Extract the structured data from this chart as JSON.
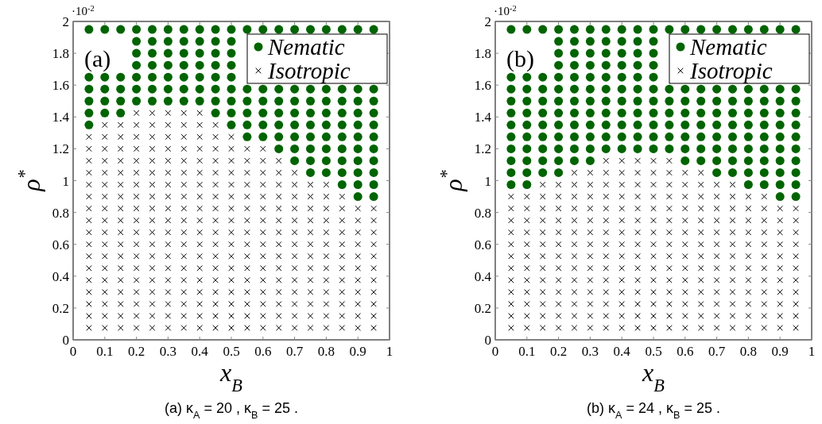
{
  "chart_data": [
    {
      "type": "scatter",
      "xlabel": "x$_{B}$",
      "ylabel": "ρ$^{*}$",
      "annotations": [
        "·10$^{-2}$",
        "(a)",
        "(a) κ$_{A}$ = 20 ,    κ$_{B}$ = 25 ."
      ],
      "xlim": [
        0,
        1
      ],
      "ylim": [
        0,
        2
      ],
      "xticks": [
        0,
        0.1,
        0.2,
        0.3,
        0.4,
        0.5,
        0.6,
        0.7,
        0.8,
        0.9,
        1
      ],
      "yticks": [
        0,
        0.2,
        0.4,
        0.6,
        0.8,
        1,
        1.2,
        1.4,
        1.6,
        1.8,
        2
      ],
      "legend": "top right",
      "grid": false,
      "series": [
        {
          "name": "Nematic",
          "color": "#006400",
          "marker": "circle",
          "x": [
            0.05,
            0.05,
            0.05,
            0.05,
            0.05,
            0.05,
            0.1,
            0.1,
            0.1,
            0.1,
            0.1,
            0.15,
            0.15,
            0.15,
            0.15,
            0.15,
            0.2,
            0.2,
            0.2,
            0.2,
            0.2,
            0.2,
            0.2,
            0.25,
            0.25,
            0.25,
            0.25,
            0.25,
            0.25,
            0.25,
            0.3,
            0.3,
            0.3,
            0.3,
            0.3,
            0.3,
            0.3,
            0.35,
            0.35,
            0.35,
            0.35,
            0.35,
            0.35,
            0.35,
            0.4,
            0.4,
            0.4,
            0.4,
            0.4,
            0.4,
            0.4,
            0.45,
            0.45,
            0.45,
            0.45,
            0.45,
            0.45,
            0.45,
            0.45,
            0.5,
            0.5,
            0.5,
            0.5,
            0.5,
            0.5,
            0.5,
            0.5,
            0.5,
            0.55,
            0.55,
            0.55,
            0.55,
            0.55,
            0.55,
            0.6,
            0.6,
            0.6,
            0.6,
            0.6,
            0.6,
            0.65,
            0.65,
            0.65,
            0.65,
            0.65,
            0.65,
            0.65,
            0.7,
            0.7,
            0.7,
            0.7,
            0.7,
            0.7,
            0.7,
            0.7,
            0.75,
            0.75,
            0.75,
            0.75,
            0.75,
            0.75,
            0.75,
            0.75,
            0.75,
            0.8,
            0.8,
            0.8,
            0.8,
            0.8,
            0.8,
            0.8,
            0.8,
            0.8,
            0.85,
            0.85,
            0.85,
            0.85,
            0.85,
            0.85,
            0.85,
            0.85,
            0.85,
            0.85,
            0.9,
            0.9,
            0.9,
            0.9,
            0.9,
            0.9,
            0.9,
            0.9,
            0.9,
            0.9,
            0.9,
            0.95,
            0.95,
            0.95,
            0.95,
            0.95,
            0.95,
            0.95,
            0.95,
            0.95,
            0.95,
            0.95
          ],
          "values": [
            1.35,
            1.425,
            1.5,
            1.575,
            1.65,
            1.95,
            1.425,
            1.5,
            1.575,
            1.65,
            1.95,
            1.425,
            1.5,
            1.575,
            1.65,
            1.95,
            1.5,
            1.575,
            1.65,
            1.725,
            1.8,
            1.875,
            1.95,
            1.5,
            1.575,
            1.65,
            1.725,
            1.8,
            1.875,
            1.95,
            1.5,
            1.575,
            1.65,
            1.725,
            1.8,
            1.875,
            1.95,
            1.5,
            1.575,
            1.65,
            1.725,
            1.8,
            1.875,
            1.95,
            1.5,
            1.575,
            1.65,
            1.725,
            1.8,
            1.875,
            1.95,
            1.425,
            1.5,
            1.575,
            1.65,
            1.725,
            1.8,
            1.875,
            1.95,
            1.35,
            1.425,
            1.5,
            1.575,
            1.65,
            1.725,
            1.8,
            1.875,
            1.95,
            1.275,
            1.35,
            1.425,
            1.5,
            1.575,
            1.95,
            1.275,
            1.35,
            1.425,
            1.5,
            1.575,
            1.95,
            1.2,
            1.275,
            1.35,
            1.425,
            1.5,
            1.575,
            1.95,
            1.125,
            1.2,
            1.275,
            1.35,
            1.425,
            1.5,
            1.575,
            1.95,
            1.05,
            1.125,
            1.2,
            1.275,
            1.35,
            1.425,
            1.5,
            1.575,
            1.95,
            1.05,
            1.125,
            1.2,
            1.275,
            1.35,
            1.425,
            1.5,
            1.575,
            1.95,
            0.975,
            1.05,
            1.125,
            1.2,
            1.275,
            1.35,
            1.425,
            1.5,
            1.575,
            1.95,
            0.9,
            0.975,
            1.05,
            1.125,
            1.2,
            1.275,
            1.35,
            1.425,
            1.5,
            1.575,
            1.95,
            0.9,
            0.975,
            1.05,
            1.125,
            1.2,
            1.275,
            1.35,
            1.425,
            1.5,
            1.575,
            1.95
          ]
        },
        {
          "name": "Isotropic",
          "color": "#000000",
          "marker": "cross",
          "x": [
            0.05,
            0.05,
            0.05,
            0.05,
            0.05,
            0.05,
            0.05,
            0.05,
            0.05,
            0.05,
            0.05,
            0.05,
            0.05,
            0.05,
            0.05,
            0.05,
            0.05,
            0.1,
            0.1,
            0.1,
            0.1,
            0.1,
            0.1,
            0.1,
            0.1,
            0.1,
            0.1,
            0.1,
            0.1,
            0.1,
            0.1,
            0.1,
            0.1,
            0.1,
            0.1,
            0.15,
            0.15,
            0.15,
            0.15,
            0.15,
            0.15,
            0.15,
            0.15,
            0.15,
            0.15,
            0.15,
            0.15,
            0.15,
            0.15,
            0.15,
            0.15,
            0.15,
            0.15,
            0.2,
            0.2,
            0.2,
            0.2,
            0.2,
            0.2,
            0.2,
            0.2,
            0.2,
            0.2,
            0.2,
            0.2,
            0.2,
            0.2,
            0.2,
            0.2,
            0.2,
            0.2,
            0.2,
            0.25,
            0.25,
            0.25,
            0.25,
            0.25,
            0.25,
            0.25,
            0.25,
            0.25,
            0.25,
            0.25,
            0.25,
            0.25,
            0.25,
            0.25,
            0.25,
            0.25,
            0.25,
            0.25,
            0.3,
            0.3,
            0.3,
            0.3,
            0.3,
            0.3,
            0.3,
            0.3,
            0.3,
            0.3,
            0.3,
            0.3,
            0.3,
            0.3,
            0.3,
            0.3,
            0.3,
            0.3,
            0.3,
            0.35,
            0.35,
            0.35,
            0.35,
            0.35,
            0.35,
            0.35,
            0.35,
            0.35,
            0.35,
            0.35,
            0.35,
            0.35,
            0.35,
            0.35,
            0.35,
            0.35,
            0.35,
            0.35,
            0.4,
            0.4,
            0.4,
            0.4,
            0.4,
            0.4,
            0.4,
            0.4,
            0.4,
            0.4,
            0.4,
            0.4,
            0.4,
            0.4,
            0.4,
            0.4,
            0.4,
            0.4,
            0.4,
            0.45,
            0.45,
            0.45,
            0.45,
            0.45,
            0.45,
            0.45,
            0.45,
            0.45,
            0.45,
            0.45,
            0.45,
            0.45,
            0.45,
            0.45,
            0.45,
            0.45,
            0.45,
            0.5,
            0.5,
            0.5,
            0.5,
            0.5,
            0.5,
            0.5,
            0.5,
            0.5,
            0.5,
            0.5,
            0.5,
            0.5,
            0.5,
            0.5,
            0.5,
            0.5,
            0.55,
            0.55,
            0.55,
            0.55,
            0.55,
            0.55,
            0.55,
            0.55,
            0.55,
            0.55,
            0.55,
            0.55,
            0.55,
            0.55,
            0.55,
            0.55,
            0.6,
            0.6,
            0.6,
            0.6,
            0.6,
            0.6,
            0.6,
            0.6,
            0.6,
            0.6,
            0.6,
            0.6,
            0.6,
            0.6,
            0.6,
            0.6,
            0.65,
            0.65,
            0.65,
            0.65,
            0.65,
            0.65,
            0.65,
            0.65,
            0.65,
            0.65,
            0.65,
            0.65,
            0.65,
            0.65,
            0.65,
            0.7,
            0.7,
            0.7,
            0.7,
            0.7,
            0.7,
            0.7,
            0.7,
            0.7,
            0.7,
            0.7,
            0.7,
            0.7,
            0.7,
            0.75,
            0.75,
            0.75,
            0.75,
            0.75,
            0.75,
            0.75,
            0.75,
            0.75,
            0.75,
            0.75,
            0.75,
            0.75,
            0.8,
            0.8,
            0.8,
            0.8,
            0.8,
            0.8,
            0.8,
            0.8,
            0.8,
            0.8,
            0.8,
            0.8,
            0.8,
            0.85,
            0.85,
            0.85,
            0.85,
            0.85,
            0.85,
            0.85,
            0.85,
            0.85,
            0.85,
            0.85,
            0.85,
            0.9,
            0.9,
            0.9,
            0.9,
            0.9,
            0.9,
            0.9,
            0.9,
            0.9,
            0.9,
            0.9,
            0.95,
            0.95,
            0.95,
            0.95,
            0.95,
            0.95,
            0.95,
            0.95,
            0.95,
            0.95,
            0.95
          ],
          "values": [
            0.075,
            0.15,
            0.225,
            0.3,
            0.375,
            0.45,
            0.525,
            0.6,
            0.675,
            0.75,
            0.825,
            0.9,
            0.975,
            1.05,
            1.125,
            1.2,
            1.275,
            0.075,
            0.15,
            0.225,
            0.3,
            0.375,
            0.45,
            0.525,
            0.6,
            0.675,
            0.75,
            0.825,
            0.9,
            0.975,
            1.05,
            1.125,
            1.2,
            1.275,
            1.35,
            0.075,
            0.15,
            0.225,
            0.3,
            0.375,
            0.45,
            0.525,
            0.6,
            0.675,
            0.75,
            0.825,
            0.9,
            0.975,
            1.05,
            1.125,
            1.2,
            1.275,
            1.35,
            0.075,
            0.15,
            0.225,
            0.3,
            0.375,
            0.45,
            0.525,
            0.6,
            0.675,
            0.75,
            0.825,
            0.9,
            0.975,
            1.05,
            1.125,
            1.2,
            1.275,
            1.35,
            1.425,
            0.075,
            0.15,
            0.225,
            0.3,
            0.375,
            0.45,
            0.525,
            0.6,
            0.675,
            0.75,
            0.825,
            0.9,
            0.975,
            1.05,
            1.125,
            1.2,
            1.275,
            1.35,
            1.425,
            0.075,
            0.15,
            0.225,
            0.3,
            0.375,
            0.45,
            0.525,
            0.6,
            0.675,
            0.75,
            0.825,
            0.9,
            0.975,
            1.05,
            1.125,
            1.2,
            1.275,
            1.35,
            1.425,
            0.075,
            0.15,
            0.225,
            0.3,
            0.375,
            0.45,
            0.525,
            0.6,
            0.675,
            0.75,
            0.825,
            0.9,
            0.975,
            1.05,
            1.125,
            1.2,
            1.275,
            1.35,
            1.425,
            0.075,
            0.15,
            0.225,
            0.3,
            0.375,
            0.45,
            0.525,
            0.6,
            0.675,
            0.75,
            0.825,
            0.9,
            0.975,
            1.05,
            1.125,
            1.2,
            1.275,
            1.35,
            1.425,
            0.075,
            0.15,
            0.225,
            0.3,
            0.375,
            0.45,
            0.525,
            0.6,
            0.675,
            0.75,
            0.825,
            0.9,
            0.975,
            1.05,
            1.125,
            1.2,
            1.275,
            1.35,
            0.075,
            0.15,
            0.225,
            0.3,
            0.375,
            0.45,
            0.525,
            0.6,
            0.675,
            0.75,
            0.825,
            0.9,
            0.975,
            1.05,
            1.125,
            1.2,
            1.275,
            0.075,
            0.15,
            0.225,
            0.3,
            0.375,
            0.45,
            0.525,
            0.6,
            0.675,
            0.75,
            0.825,
            0.9,
            0.975,
            1.05,
            1.125,
            1.2,
            0.075,
            0.15,
            0.225,
            0.3,
            0.375,
            0.45,
            0.525,
            0.6,
            0.675,
            0.75,
            0.825,
            0.9,
            0.975,
            1.05,
            1.125,
            1.2,
            0.075,
            0.15,
            0.225,
            0.3,
            0.375,
            0.45,
            0.525,
            0.6,
            0.675,
            0.75,
            0.825,
            0.9,
            0.975,
            1.05,
            1.125,
            0.075,
            0.15,
            0.225,
            0.3,
            0.375,
            0.45,
            0.525,
            0.6,
            0.675,
            0.75,
            0.825,
            0.9,
            0.975,
            1.05,
            0.075,
            0.15,
            0.225,
            0.3,
            0.375,
            0.45,
            0.525,
            0.6,
            0.675,
            0.75,
            0.825,
            0.9,
            0.975,
            0.075,
            0.15,
            0.225,
            0.3,
            0.375,
            0.45,
            0.525,
            0.6,
            0.675,
            0.75,
            0.825,
            0.9,
            0.975,
            0.075,
            0.15,
            0.225,
            0.3,
            0.375,
            0.45,
            0.525,
            0.6,
            0.675,
            0.75,
            0.825,
            0.9,
            0.075,
            0.15,
            0.225,
            0.3,
            0.375,
            0.45,
            0.525,
            0.6,
            0.675,
            0.75,
            0.825,
            0.075,
            0.15,
            0.225,
            0.3,
            0.375,
            0.45,
            0.525,
            0.6,
            0.675,
            0.75,
            0.825
          ]
        }
      ]
    },
    {
      "type": "scatter",
      "xlabel": "x$_{B}$",
      "ylabel": "ρ$^{*}$",
      "annotations": [
        "·10$^{-2}$",
        "(b)",
        "(b) κ$_{A}$ = 24 ,    κ$_{B}$ = 25 ."
      ],
      "xlim": [
        0,
        1
      ],
      "ylim": [
        0,
        2
      ],
      "xticks": [
        0,
        0.1,
        0.2,
        0.3,
        0.4,
        0.5,
        0.6,
        0.7,
        0.8,
        0.9,
        1
      ],
      "yticks": [
        0,
        0.2,
        0.4,
        0.6,
        0.8,
        1,
        1.2,
        1.4,
        1.6,
        1.8,
        2
      ],
      "legend": "top right",
      "grid": false,
      "series": [
        {
          "name": "Nematic",
          "color": "#006400",
          "marker": "circle",
          "x": [
            0.05,
            0.05,
            0.05,
            0.05,
            0.05,
            0.05,
            0.05,
            0.05,
            0.05,
            0.05,
            0.05,
            0.1,
            0.1,
            0.1,
            0.1,
            0.1,
            0.1,
            0.1,
            0.1,
            0.1,
            0.1,
            0.1,
            0.15,
            0.15,
            0.15,
            0.15,
            0.15,
            0.15,
            0.15,
            0.15,
            0.15,
            0.15,
            0.2,
            0.2,
            0.2,
            0.2,
            0.2,
            0.2,
            0.2,
            0.2,
            0.2,
            0.2,
            0.2,
            0.2,
            0.2,
            0.25,
            0.25,
            0.25,
            0.25,
            0.25,
            0.25,
            0.25,
            0.25,
            0.25,
            0.25,
            0.25,
            0.25,
            0.3,
            0.3,
            0.3,
            0.3,
            0.3,
            0.3,
            0.3,
            0.3,
            0.3,
            0.3,
            0.3,
            0.3,
            0.35,
            0.35,
            0.35,
            0.35,
            0.35,
            0.35,
            0.35,
            0.35,
            0.35,
            0.35,
            0.35,
            0.4,
            0.4,
            0.4,
            0.4,
            0.4,
            0.4,
            0.4,
            0.4,
            0.4,
            0.4,
            0.4,
            0.45,
            0.45,
            0.45,
            0.45,
            0.45,
            0.45,
            0.45,
            0.45,
            0.45,
            0.45,
            0.45,
            0.5,
            0.5,
            0.5,
            0.5,
            0.5,
            0.5,
            0.5,
            0.5,
            0.5,
            0.5,
            0.5,
            0.55,
            0.55,
            0.55,
            0.55,
            0.55,
            0.55,
            0.55,
            0.6,
            0.6,
            0.6,
            0.6,
            0.6,
            0.6,
            0.6,
            0.6,
            0.65,
            0.65,
            0.65,
            0.65,
            0.65,
            0.65,
            0.65,
            0.65,
            0.7,
            0.7,
            0.7,
            0.7,
            0.7,
            0.7,
            0.7,
            0.7,
            0.7,
            0.75,
            0.75,
            0.75,
            0.75,
            0.75,
            0.75,
            0.75,
            0.75,
            0.75,
            0.8,
            0.8,
            0.8,
            0.8,
            0.8,
            0.8,
            0.8,
            0.8,
            0.8,
            0.8,
            0.85,
            0.85,
            0.85,
            0.85,
            0.85,
            0.85,
            0.85,
            0.85,
            0.85,
            0.85,
            0.9,
            0.9,
            0.9,
            0.9,
            0.9,
            0.9,
            0.9,
            0.9,
            0.9,
            0.9,
            0.9,
            0.95,
            0.95,
            0.95,
            0.95,
            0.95,
            0.95,
            0.95,
            0.95,
            0.95,
            0.95,
            0.95
          ],
          "values": [
            0.975,
            1.05,
            1.125,
            1.2,
            1.275,
            1.35,
            1.425,
            1.5,
            1.575,
            1.65,
            1.95,
            0.975,
            1.05,
            1.125,
            1.2,
            1.275,
            1.35,
            1.425,
            1.5,
            1.575,
            1.65,
            1.95,
            1.05,
            1.125,
            1.2,
            1.275,
            1.35,
            1.425,
            1.5,
            1.575,
            1.65,
            1.95,
            1.05,
            1.125,
            1.2,
            1.275,
            1.35,
            1.425,
            1.5,
            1.575,
            1.65,
            1.725,
            1.8,
            1.875,
            1.95,
            1.125,
            1.2,
            1.275,
            1.35,
            1.425,
            1.5,
            1.575,
            1.65,
            1.725,
            1.8,
            1.875,
            1.95,
            1.125,
            1.2,
            1.275,
            1.35,
            1.425,
            1.5,
            1.575,
            1.65,
            1.725,
            1.8,
            1.875,
            1.95,
            1.2,
            1.275,
            1.35,
            1.425,
            1.5,
            1.575,
            1.65,
            1.725,
            1.8,
            1.875,
            1.95,
            1.2,
            1.275,
            1.35,
            1.425,
            1.5,
            1.575,
            1.65,
            1.725,
            1.8,
            1.875,
            1.95,
            1.2,
            1.275,
            1.35,
            1.425,
            1.5,
            1.575,
            1.65,
            1.725,
            1.8,
            1.875,
            1.95,
            1.2,
            1.275,
            1.35,
            1.425,
            1.5,
            1.575,
            1.65,
            1.725,
            1.8,
            1.875,
            1.95,
            1.2,
            1.275,
            1.35,
            1.425,
            1.5,
            1.575,
            1.95,
            1.125,
            1.2,
            1.275,
            1.35,
            1.425,
            1.5,
            1.575,
            1.95,
            1.125,
            1.2,
            1.275,
            1.35,
            1.425,
            1.5,
            1.575,
            1.95,
            1.05,
            1.125,
            1.2,
            1.275,
            1.35,
            1.425,
            1.5,
            1.575,
            1.95,
            1.05,
            1.125,
            1.2,
            1.275,
            1.35,
            1.425,
            1.5,
            1.575,
            1.95,
            0.975,
            1.05,
            1.125,
            1.2,
            1.275,
            1.35,
            1.425,
            1.5,
            1.575,
            1.95,
            0.975,
            1.05,
            1.125,
            1.2,
            1.275,
            1.35,
            1.425,
            1.5,
            1.575,
            1.95,
            0.9,
            0.975,
            1.05,
            1.125,
            1.2,
            1.275,
            1.35,
            1.425,
            1.5,
            1.575,
            1.95,
            0.9,
            0.975,
            1.05,
            1.125,
            1.2,
            1.275,
            1.35,
            1.425,
            1.5,
            1.575,
            1.95
          ]
        },
        {
          "name": "Isotropic",
          "color": "#000000",
          "marker": "cross",
          "x": [
            0.05,
            0.05,
            0.05,
            0.05,
            0.05,
            0.05,
            0.05,
            0.05,
            0.05,
            0.05,
            0.05,
            0.05,
            0.1,
            0.1,
            0.1,
            0.1,
            0.1,
            0.1,
            0.1,
            0.1,
            0.1,
            0.1,
            0.1,
            0.1,
            0.15,
            0.15,
            0.15,
            0.15,
            0.15,
            0.15,
            0.15,
            0.15,
            0.15,
            0.15,
            0.15,
            0.15,
            0.15,
            0.2,
            0.2,
            0.2,
            0.2,
            0.2,
            0.2,
            0.2,
            0.2,
            0.2,
            0.2,
            0.2,
            0.2,
            0.2,
            0.25,
            0.25,
            0.25,
            0.25,
            0.25,
            0.25,
            0.25,
            0.25,
            0.25,
            0.25,
            0.25,
            0.25,
            0.25,
            0.25,
            0.3,
            0.3,
            0.3,
            0.3,
            0.3,
            0.3,
            0.3,
            0.3,
            0.3,
            0.3,
            0.3,
            0.3,
            0.3,
            0.3,
            0.35,
            0.35,
            0.35,
            0.35,
            0.35,
            0.35,
            0.35,
            0.35,
            0.35,
            0.35,
            0.35,
            0.35,
            0.35,
            0.35,
            0.35,
            0.4,
            0.4,
            0.4,
            0.4,
            0.4,
            0.4,
            0.4,
            0.4,
            0.4,
            0.4,
            0.4,
            0.4,
            0.4,
            0.4,
            0.4,
            0.45,
            0.45,
            0.45,
            0.45,
            0.45,
            0.45,
            0.45,
            0.45,
            0.45,
            0.45,
            0.45,
            0.45,
            0.45,
            0.45,
            0.45,
            0.5,
            0.5,
            0.5,
            0.5,
            0.5,
            0.5,
            0.5,
            0.5,
            0.5,
            0.5,
            0.5,
            0.5,
            0.5,
            0.5,
            0.5,
            0.55,
            0.55,
            0.55,
            0.55,
            0.55,
            0.55,
            0.55,
            0.55,
            0.55,
            0.55,
            0.55,
            0.55,
            0.55,
            0.55,
            0.55,
            0.6,
            0.6,
            0.6,
            0.6,
            0.6,
            0.6,
            0.6,
            0.6,
            0.6,
            0.6,
            0.6,
            0.6,
            0.6,
            0.6,
            0.65,
            0.65,
            0.65,
            0.65,
            0.65,
            0.65,
            0.65,
            0.65,
            0.65,
            0.65,
            0.65,
            0.65,
            0.65,
            0.65,
            0.7,
            0.7,
            0.7,
            0.7,
            0.7,
            0.7,
            0.7,
            0.7,
            0.7,
            0.7,
            0.7,
            0.7,
            0.7,
            0.75,
            0.75,
            0.75,
            0.75,
            0.75,
            0.75,
            0.75,
            0.75,
            0.75,
            0.75,
            0.75,
            0.75,
            0.75,
            0.8,
            0.8,
            0.8,
            0.8,
            0.8,
            0.8,
            0.8,
            0.8,
            0.8,
            0.8,
            0.8,
            0.8,
            0.85,
            0.85,
            0.85,
            0.85,
            0.85,
            0.85,
            0.85,
            0.85,
            0.85,
            0.85,
            0.85,
            0.85,
            0.9,
            0.9,
            0.9,
            0.9,
            0.9,
            0.9,
            0.9,
            0.9,
            0.9,
            0.9,
            0.9,
            0.95,
            0.95,
            0.95,
            0.95,
            0.95,
            0.95,
            0.95,
            0.95,
            0.95,
            0.95,
            0.95
          ],
          "values": [
            0.075,
            0.15,
            0.225,
            0.3,
            0.375,
            0.45,
            0.525,
            0.6,
            0.675,
            0.75,
            0.825,
            0.9,
            0.075,
            0.15,
            0.225,
            0.3,
            0.375,
            0.45,
            0.525,
            0.6,
            0.675,
            0.75,
            0.825,
            0.9,
            0.075,
            0.15,
            0.225,
            0.3,
            0.375,
            0.45,
            0.525,
            0.6,
            0.675,
            0.75,
            0.825,
            0.9,
            0.975,
            0.075,
            0.15,
            0.225,
            0.3,
            0.375,
            0.45,
            0.525,
            0.6,
            0.675,
            0.75,
            0.825,
            0.9,
            0.975,
            0.075,
            0.15,
            0.225,
            0.3,
            0.375,
            0.45,
            0.525,
            0.6,
            0.675,
            0.75,
            0.825,
            0.9,
            0.975,
            1.05,
            0.075,
            0.15,
            0.225,
            0.3,
            0.375,
            0.45,
            0.525,
            0.6,
            0.675,
            0.75,
            0.825,
            0.9,
            0.975,
            1.05,
            0.075,
            0.15,
            0.225,
            0.3,
            0.375,
            0.45,
            0.525,
            0.6,
            0.675,
            0.75,
            0.825,
            0.9,
            0.975,
            1.05,
            1.125,
            0.075,
            0.15,
            0.225,
            0.3,
            0.375,
            0.45,
            0.525,
            0.6,
            0.675,
            0.75,
            0.825,
            0.9,
            0.975,
            1.05,
            1.125,
            0.075,
            0.15,
            0.225,
            0.3,
            0.375,
            0.45,
            0.525,
            0.6,
            0.675,
            0.75,
            0.825,
            0.9,
            0.975,
            1.05,
            1.125,
            0.075,
            0.15,
            0.225,
            0.3,
            0.375,
            0.45,
            0.525,
            0.6,
            0.675,
            0.75,
            0.825,
            0.9,
            0.975,
            1.05,
            1.125,
            0.075,
            0.15,
            0.225,
            0.3,
            0.375,
            0.45,
            0.525,
            0.6,
            0.675,
            0.75,
            0.825,
            0.9,
            0.975,
            1.05,
            1.125,
            0.075,
            0.15,
            0.225,
            0.3,
            0.375,
            0.45,
            0.525,
            0.6,
            0.675,
            0.75,
            0.825,
            0.9,
            0.975,
            1.05,
            0.075,
            0.15,
            0.225,
            0.3,
            0.375,
            0.45,
            0.525,
            0.6,
            0.675,
            0.75,
            0.825,
            0.9,
            0.975,
            1.05,
            0.075,
            0.15,
            0.225,
            0.3,
            0.375,
            0.45,
            0.525,
            0.6,
            0.675,
            0.75,
            0.825,
            0.9,
            0.975,
            0.075,
            0.15,
            0.225,
            0.3,
            0.375,
            0.45,
            0.525,
            0.6,
            0.675,
            0.75,
            0.825,
            0.9,
            0.975,
            0.075,
            0.15,
            0.225,
            0.3,
            0.375,
            0.45,
            0.525,
            0.6,
            0.675,
            0.75,
            0.825,
            0.9,
            0.075,
            0.15,
            0.225,
            0.3,
            0.375,
            0.45,
            0.525,
            0.6,
            0.675,
            0.75,
            0.825,
            0.9,
            0.075,
            0.15,
            0.225,
            0.3,
            0.375,
            0.45,
            0.525,
            0.6,
            0.675,
            0.75,
            0.825,
            0.075,
            0.15,
            0.225,
            0.3,
            0.375,
            0.45,
            0.525,
            0.6,
            0.675,
            0.75,
            0.825
          ]
        }
      ]
    }
  ]
}
